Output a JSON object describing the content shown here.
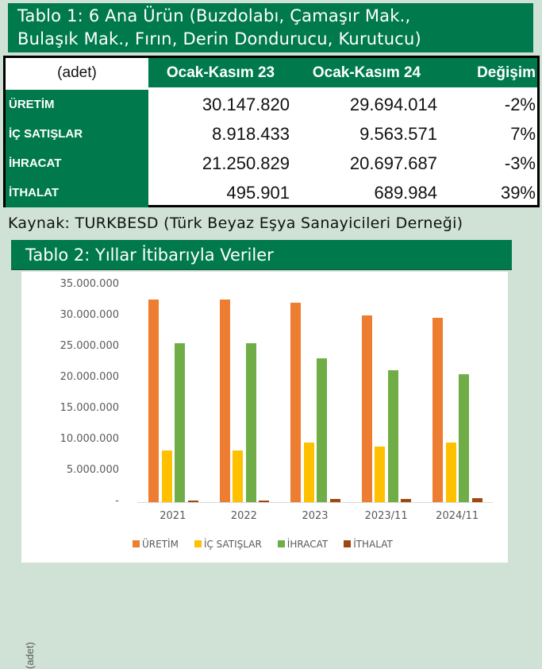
{
  "table1": {
    "title_line1": "Tablo 1: 6 Ana Ürün (Buzdolabı, Çamaşır Mak.,",
    "title_line2": "Bulaşık Mak., Fırın, Derin Dondurucu, Kurutucu)",
    "headers": [
      "(adet)",
      "Ocak-Kasım 23",
      "Ocak-Kasım 24",
      "Değişim"
    ],
    "rows": [
      {
        "label": "ÜRETİM",
        "v23": "30.147.820",
        "v24": "29.694.014",
        "change": "-2%"
      },
      {
        "label": "İÇ SATIŞLAR",
        "v23": "8.918.433",
        "v24": "9.563.571",
        "change": "7%"
      },
      {
        "label": "İHRACAT",
        "v23": "21.250.829",
        "v24": "20.697.687",
        "change": "-3%"
      },
      {
        "label": "İTHALAT",
        "v23": "495.901",
        "v24": "689.984",
        "change": "39%"
      }
    ],
    "source": "Kaynak: TURKBESD (Türk Beyaz Eşya Sanayicileri Derneği)"
  },
  "table2": {
    "title": "Tablo 2: Yıllar İtibarıyla Veriler"
  },
  "chart_data": {
    "type": "bar",
    "title": "Tablo 2: Yıllar İtibarıyla Veriler",
    "xlabel": "",
    "ylabel": "(adet)",
    "ylim": [
      0,
      35000000
    ],
    "yticks": [
      "-",
      "5.000.000",
      "10.000.000",
      "15.000.000",
      "20.000.000",
      "25.000.000",
      "30.000.000",
      "35.000.000"
    ],
    "grid": false,
    "legend_position": "bottom",
    "categories": [
      "2021",
      "2022",
      "2023",
      "2023/11",
      "2024/11"
    ],
    "series": [
      {
        "name": "ÜRETİM",
        "color": "#ed7d31",
        "values": [
          32700000,
          32700000,
          32200000,
          30147820,
          29694014
        ]
      },
      {
        "name": "İÇ SATIŞLAR",
        "color": "#ffc000",
        "values": [
          8300000,
          8300000,
          9600000,
          8918433,
          9563571
        ]
      },
      {
        "name": "İHRACAT",
        "color": "#70ad47",
        "values": [
          25600000,
          25600000,
          23200000,
          21250829,
          20697687
        ]
      },
      {
        "name": "İTHALAT",
        "color": "#9e480e",
        "values": [
          250000,
          250000,
          500000,
          495901,
          689984
        ]
      }
    ]
  }
}
